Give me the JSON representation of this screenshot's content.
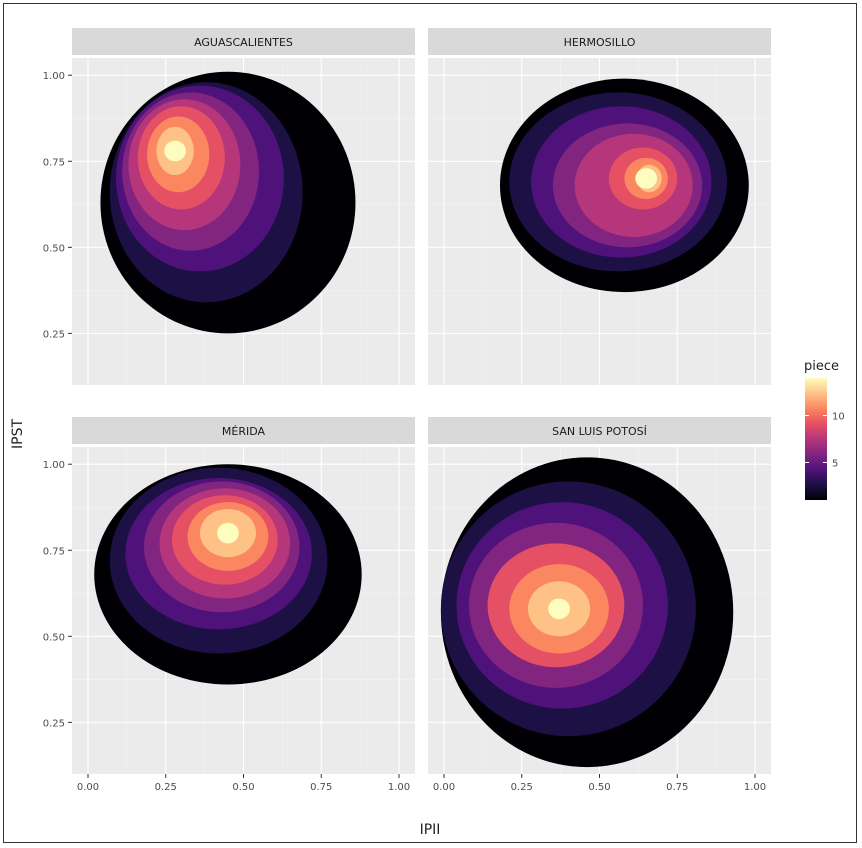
{
  "chart_data": {
    "type": "heatmap",
    "subtype": "faceted filled 2D density contour",
    "xlabel": "IPII",
    "ylabel": "IPST",
    "xlim": [
      0.0,
      1.0
    ],
    "ylim": [
      0.1,
      1.05
    ],
    "x_ticks": [
      "0.00",
      "0.25",
      "0.50",
      "0.75",
      "1.00"
    ],
    "y_ticks": [
      "0.25",
      "0.50",
      "0.75",
      "1.00"
    ],
    "legend": {
      "title": "piece",
      "placement": "right",
      "ticks": [
        "5",
        "10"
      ],
      "range": [
        1,
        14
      ],
      "colormap": "magma",
      "colors": [
        "#000004",
        "#1c1044",
        "#4f127b",
        "#812581",
        "#b5367a",
        "#e55064",
        "#fb8761",
        "#fec287",
        "#fcfdbf"
      ]
    },
    "panel_background": "#ebebeb",
    "strip_background": "#d9d9d9",
    "grid": true,
    "facets": [
      {
        "name": "AGUASCALIENTES",
        "peak": {
          "x": 0.28,
          "y": 0.78,
          "level": 10
        },
        "levels": [
          {
            "level": 0,
            "cx": 0.45,
            "cy": 0.63,
            "rx": 0.41,
            "ry": 0.38
          },
          {
            "level": 1,
            "cx": 0.38,
            "cy": 0.66,
            "rx": 0.31,
            "ry": 0.32
          },
          {
            "level": 2,
            "cx": 0.36,
            "cy": 0.7,
            "rx": 0.27,
            "ry": 0.27
          },
          {
            "level": 3,
            "cx": 0.33,
            "cy": 0.72,
            "rx": 0.22,
            "ry": 0.23
          },
          {
            "level": 4,
            "cx": 0.31,
            "cy": 0.74,
            "rx": 0.18,
            "ry": 0.19
          },
          {
            "level": 5,
            "cx": 0.3,
            "cy": 0.76,
            "rx": 0.14,
            "ry": 0.15
          },
          {
            "level": 6,
            "cx": 0.29,
            "cy": 0.77,
            "rx": 0.1,
            "ry": 0.11
          },
          {
            "level": 7,
            "cx": 0.28,
            "cy": 0.78,
            "rx": 0.06,
            "ry": 0.07
          }
        ]
      },
      {
        "name": "HERMOSILLO",
        "peak": {
          "x": 0.65,
          "y": 0.7,
          "level": 14
        },
        "levels": [
          {
            "level": 0,
            "cx": 0.58,
            "cy": 0.68,
            "rx": 0.4,
            "ry": 0.31
          },
          {
            "level": 1,
            "cx": 0.56,
            "cy": 0.69,
            "rx": 0.35,
            "ry": 0.26
          },
          {
            "level": 2,
            "cx": 0.57,
            "cy": 0.69,
            "rx": 0.29,
            "ry": 0.22
          },
          {
            "level": 3,
            "cx": 0.59,
            "cy": 0.68,
            "rx": 0.24,
            "ry": 0.18
          },
          {
            "level": 4,
            "cx": 0.61,
            "cy": 0.68,
            "rx": 0.19,
            "ry": 0.15
          },
          {
            "level": 5,
            "cx": 0.62,
            "cy": 0.69,
            "rx": 0.15,
            "ry": 0.12
          },
          {
            "level": 6,
            "cx": 0.64,
            "cy": 0.7,
            "rx": 0.11,
            "ry": 0.09
          },
          {
            "level": 7,
            "cx": 0.65,
            "cy": 0.7,
            "rx": 0.07,
            "ry": 0.06
          },
          {
            "level": 8,
            "cx": 0.66,
            "cy": 0.7,
            "rx": 0.04,
            "ry": 0.04
          }
        ]
      },
      {
        "name": "MÉRIDA",
        "peak": {
          "x": 0.45,
          "y": 0.8,
          "level": 14
        },
        "levels": [
          {
            "level": 0,
            "cx": 0.45,
            "cy": 0.68,
            "rx": 0.43,
            "ry": 0.32
          },
          {
            "level": 1,
            "cx": 0.42,
            "cy": 0.72,
            "rx": 0.35,
            "ry": 0.27
          },
          {
            "level": 2,
            "cx": 0.42,
            "cy": 0.74,
            "rx": 0.3,
            "ry": 0.22
          },
          {
            "level": 3,
            "cx": 0.43,
            "cy": 0.76,
            "rx": 0.25,
            "ry": 0.19
          },
          {
            "level": 4,
            "cx": 0.44,
            "cy": 0.77,
            "rx": 0.21,
            "ry": 0.16
          },
          {
            "level": 5,
            "cx": 0.44,
            "cy": 0.78,
            "rx": 0.17,
            "ry": 0.13
          },
          {
            "level": 6,
            "cx": 0.45,
            "cy": 0.79,
            "rx": 0.13,
            "ry": 0.1
          },
          {
            "level": 7,
            "cx": 0.45,
            "cy": 0.8,
            "rx": 0.09,
            "ry": 0.07
          }
        ]
      },
      {
        "name": "SAN LUIS POTOSÍ",
        "peak": {
          "x": 0.37,
          "y": 0.58,
          "level": 10
        },
        "levels": [
          {
            "level": 0,
            "cx": 0.46,
            "cy": 0.57,
            "rx": 0.47,
            "ry": 0.45
          },
          {
            "level": 1,
            "cx": 0.4,
            "cy": 0.58,
            "rx": 0.41,
            "ry": 0.37
          },
          {
            "level": 2,
            "cx": 0.38,
            "cy": 0.59,
            "rx": 0.34,
            "ry": 0.3
          },
          {
            "level": 3,
            "cx": 0.36,
            "cy": 0.59,
            "rx": 0.28,
            "ry": 0.24
          },
          {
            "level": 4,
            "cx": 0.36,
            "cy": 0.59,
            "rx": 0.22,
            "ry": 0.18
          },
          {
            "level": 5,
            "cx": 0.37,
            "cy": 0.58,
            "rx": 0.16,
            "ry": 0.13
          },
          {
            "level": 6,
            "cx": 0.37,
            "cy": 0.58,
            "rx": 0.1,
            "ry": 0.08
          }
        ]
      }
    ]
  }
}
